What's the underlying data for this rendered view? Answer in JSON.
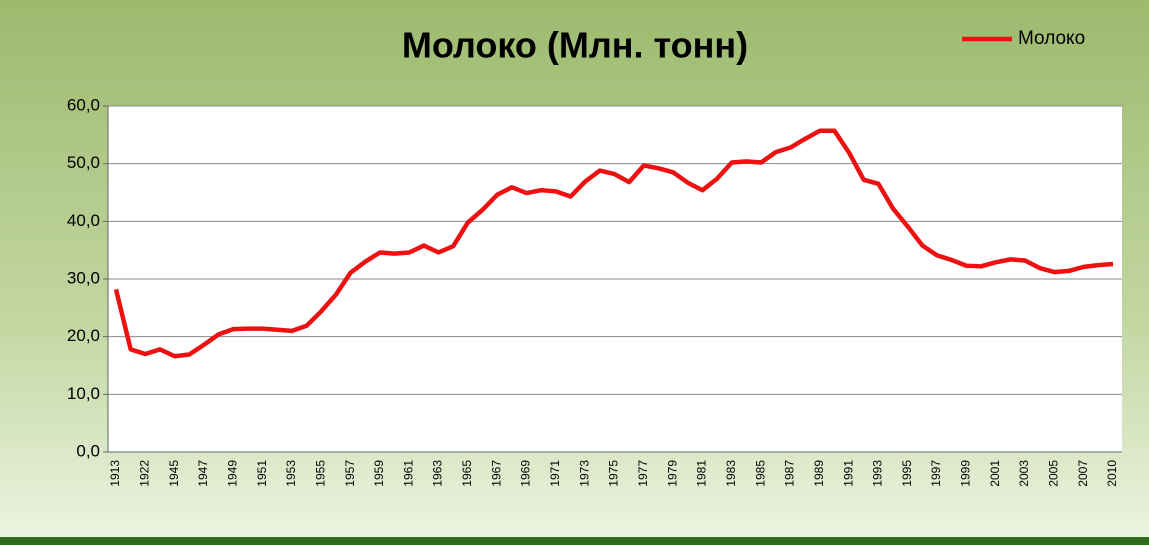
{
  "chart_data": {
    "type": "line",
    "title": "Молоко (Млн. тонн)",
    "categories": [
      "1913",
      null,
      "1922",
      null,
      "1945",
      null,
      "1947",
      null,
      "1949",
      null,
      "1951",
      null,
      "1953",
      null,
      "1955",
      null,
      "1957",
      null,
      "1959",
      null,
      "1961",
      null,
      "1963",
      null,
      "1965",
      null,
      "1967",
      null,
      "1969",
      null,
      "1971",
      null,
      "1973",
      null,
      "1975",
      null,
      "1977",
      null,
      "1979",
      null,
      "1981",
      null,
      "1983",
      null,
      "1985",
      null,
      "1987",
      null,
      "1989",
      null,
      "1991",
      null,
      "1993",
      null,
      "1995",
      null,
      "1997",
      null,
      "1999",
      null,
      "2001",
      null,
      "2003",
      null,
      "2005",
      null,
      "2007",
      null,
      "2010"
    ],
    "series": [
      {
        "name": "Молоко",
        "color": "#ee1111",
        "values": [
          28.2,
          17.8,
          17.0,
          17.8,
          16.6,
          16.9,
          18.6,
          20.4,
          21.3,
          21.4,
          21.4,
          21.2,
          21.0,
          21.9,
          24.4,
          27.3,
          31.1,
          33.0,
          34.6,
          34.4,
          34.6,
          35.8,
          34.6,
          35.7,
          39.8,
          42.0,
          44.6,
          45.9,
          44.9,
          45.4,
          45.2,
          44.3,
          46.9,
          48.8,
          48.2,
          46.8,
          49.7,
          49.2,
          48.5,
          46.7,
          45.4,
          47.4,
          50.2,
          50.4,
          50.2,
          52.0,
          52.8,
          54.3,
          55.7,
          55.7,
          51.9,
          47.2,
          46.5,
          42.2,
          39.1,
          35.8,
          34.1,
          33.3,
          32.3,
          32.2,
          32.9,
          33.4,
          33.2,
          31.9,
          31.2,
          31.4,
          32.1,
          32.4,
          32.6
        ]
      }
    ],
    "ylim": [
      0,
      60
    ],
    "yticks": [
      {
        "value": 0,
        "label": "0,0"
      },
      {
        "value": 10,
        "label": "10,0"
      },
      {
        "value": 20,
        "label": "20,0"
      },
      {
        "value": 30,
        "label": "30,0"
      },
      {
        "value": 40,
        "label": "40,0"
      },
      {
        "value": 50,
        "label": "50,0"
      },
      {
        "value": 60,
        "label": "60,0"
      }
    ],
    "grid": true,
    "legend": "top-right"
  }
}
